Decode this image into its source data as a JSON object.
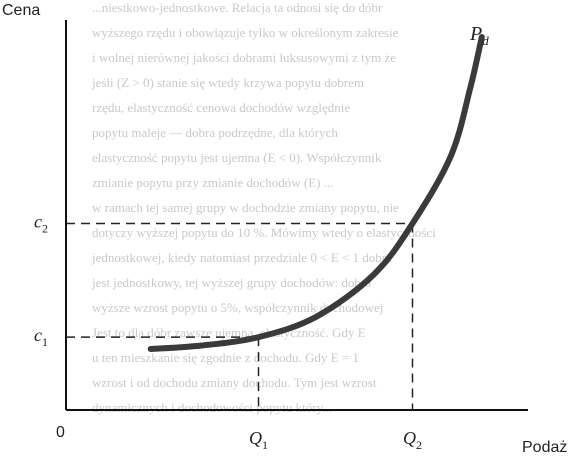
{
  "chart_data": {
    "type": "line",
    "ylabel": "Cena",
    "xlabel": "Podaż",
    "origin_label": "0",
    "series": [
      {
        "name": "Pd",
        "label_main": "P",
        "label_sub": "d",
        "x": [
          0.22,
          0.35,
          0.5,
          0.65,
          0.8,
          0.9,
          1.0,
          1.05,
          1.08
        ],
        "y": [
          0.36,
          0.38,
          0.43,
          0.55,
          0.8,
          1.1,
          1.5,
          1.9,
          2.2
        ]
      }
    ],
    "x_ticks": [
      {
        "main": "Q",
        "sub": "1",
        "value": 0.5
      },
      {
        "main": "Q",
        "sub": "2",
        "value": 0.9
      }
    ],
    "y_ticks": [
      {
        "main": "c",
        "sub": "1",
        "value": 0.43
      },
      {
        "main": "c",
        "sub": "2",
        "value": 1.1
      }
    ],
    "reference_lines": [
      {
        "x": 0.5,
        "y": 0.43
      },
      {
        "x": 0.9,
        "y": 1.1
      }
    ],
    "xlim": [
      0,
      1.2
    ],
    "ylim": [
      0,
      2.3
    ],
    "grid": false,
    "colors": {
      "curve": "#3a3a3a",
      "axis": "#111111",
      "dashed": "#222222"
    }
  },
  "background_text": [
    "...niestkowo-jednostkowe. Relacja ta odnosi się do dóbr",
    "wyższego rzędu i obowiązuje tylko w określonym zakresie",
    "i wolnej nierównej jakości dobrami luksusowymi z tym że",
    "jeśli (Z > 0) stanie się wtedy krzywa popytu dobrem",
    "rzędu, elastyczność cenowa dochodów względnie",
    "popytu maleje — dobra podrzędne, dla których",
    "elastyczność popytu jest ujemna (E < 0). Współczynnik",
    "zmianie popytu przy zmianie dochodów (E) ...",
    "w ramach tej samej grupy w dochodzie zmiany popytu, nie",
    "dotyczy wyższej popytu do 10 %. Mówimy wtedy o elastyczności",
    "jednostkowej, kiedy natomiast przedziale 0 < E < 1 dobra",
    "jest jednostkowy, tej wyższej grupy dochodów: dobra",
    "wyższe wzrost popytu o 5%, współczynnik dochodowej",
    "Jest to dla dóbr zawsze ujemna, elastyczność. Gdy E",
    "u ten mieszkanie się zgodnie z dochodu. Gdy E = 1",
    "wzrost i od dochodu zmiany dochodu. Tym jest wzrost",
    "dynamicznych i dochodowości popytu który..."
  ]
}
